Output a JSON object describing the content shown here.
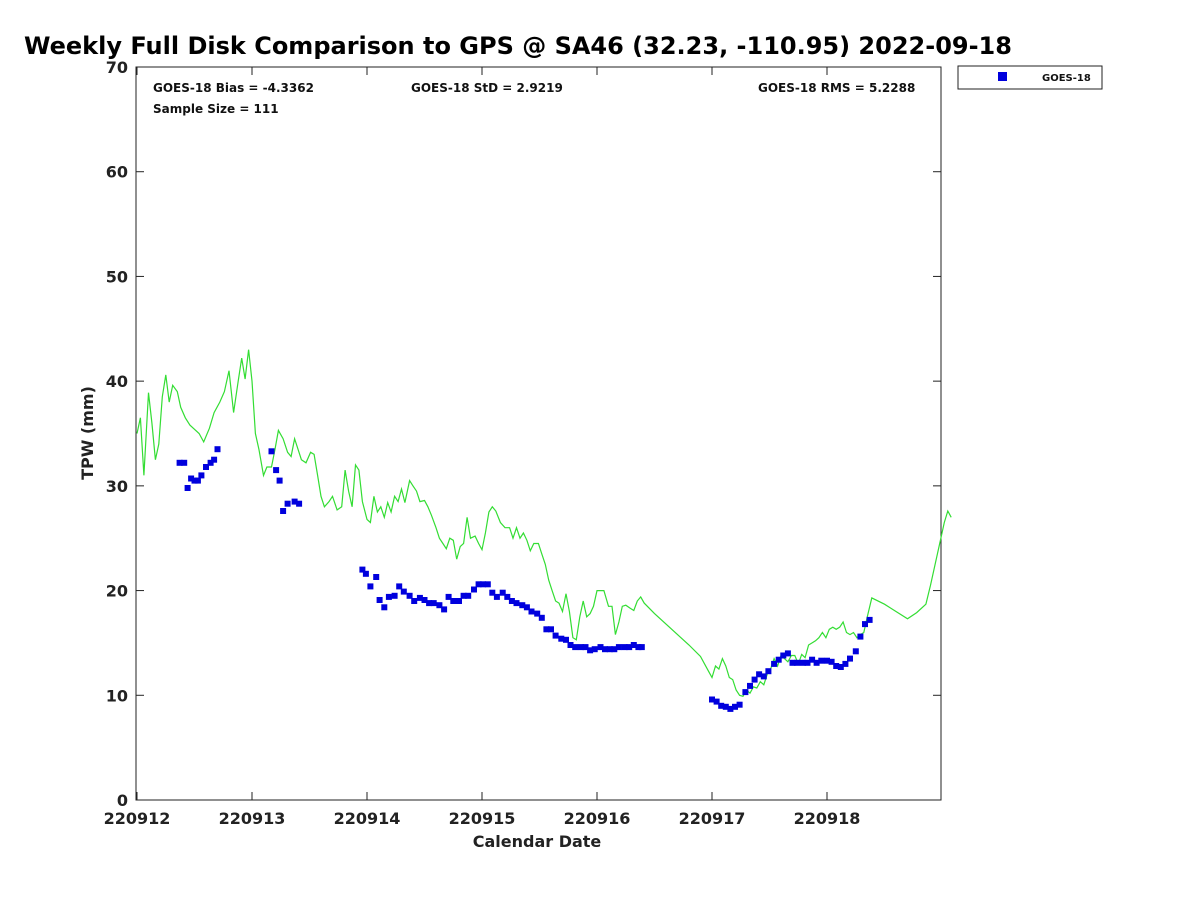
{
  "chart_data": {
    "type": "scatter",
    "title": "Weekly Full Disk Comparison to GPS @ SA46 (32.23, -110.95) 2022-09-18",
    "xlabel": "Calendar Date",
    "ylabel": "TPW (mm)",
    "xlim": [
      0,
      7
    ],
    "ylim": [
      0,
      70
    ],
    "yticks": [
      0,
      10,
      20,
      30,
      40,
      50,
      60,
      70
    ],
    "xticks": [
      {
        "x": 0,
        "label": "220912"
      },
      {
        "x": 1,
        "label": "220913"
      },
      {
        "x": 2,
        "label": "220914"
      },
      {
        "x": 3,
        "label": "220915"
      },
      {
        "x": 4,
        "label": "220916"
      },
      {
        "x": 5,
        "label": "220917"
      },
      {
        "x": 6,
        "label": "220918"
      }
    ],
    "stats": {
      "bias": "GOES-18 Bias = -4.3362",
      "std": "GOES-18 StD = 2.9219",
      "rms": "GOES-18 RMS = 5.2288",
      "sample": "Sample Size = 111"
    },
    "legend": {
      "position": "top-right",
      "label": "GOES-18"
    },
    "colors": {
      "goes": "#0000dd",
      "gps": "#33dd33"
    },
    "series": [
      {
        "name": "GOES-18",
        "kind": "markers",
        "points": [
          [
            0.37,
            32.2
          ],
          [
            0.41,
            32.2
          ],
          [
            0.44,
            29.8
          ],
          [
            0.47,
            30.7
          ],
          [
            0.5,
            30.5
          ],
          [
            0.53,
            30.5
          ],
          [
            0.56,
            31.0
          ],
          [
            0.6,
            31.8
          ],
          [
            0.64,
            32.2
          ],
          [
            0.67,
            32.5
          ],
          [
            0.7,
            33.5
          ],
          [
            1.17,
            33.3
          ],
          [
            1.21,
            31.5
          ],
          [
            1.24,
            30.5
          ],
          [
            1.27,
            27.6
          ],
          [
            1.31,
            28.3
          ],
          [
            1.37,
            28.5
          ],
          [
            1.41,
            28.3
          ],
          [
            1.96,
            22.0
          ],
          [
            1.99,
            21.6
          ],
          [
            2.03,
            20.4
          ],
          [
            2.08,
            21.3
          ],
          [
            2.11,
            19.1
          ],
          [
            2.15,
            18.4
          ],
          [
            2.19,
            19.4
          ],
          [
            2.24,
            19.5
          ],
          [
            2.28,
            20.4
          ],
          [
            2.32,
            19.9
          ],
          [
            2.37,
            19.5
          ],
          [
            2.41,
            19.0
          ],
          [
            2.46,
            19.3
          ],
          [
            2.5,
            19.1
          ],
          [
            2.54,
            18.8
          ],
          [
            2.58,
            18.8
          ],
          [
            2.63,
            18.6
          ],
          [
            2.67,
            18.2
          ],
          [
            2.71,
            19.4
          ],
          [
            2.75,
            19.0
          ],
          [
            2.8,
            19.0
          ],
          [
            2.84,
            19.5
          ],
          [
            2.88,
            19.5
          ],
          [
            2.93,
            20.1
          ],
          [
            2.97,
            20.6
          ],
          [
            3.01,
            20.6
          ],
          [
            3.05,
            20.6
          ],
          [
            3.09,
            19.8
          ],
          [
            3.13,
            19.4
          ],
          [
            3.18,
            19.8
          ],
          [
            3.22,
            19.4
          ],
          [
            3.26,
            19.0
          ],
          [
            3.3,
            18.8
          ],
          [
            3.35,
            18.6
          ],
          [
            3.39,
            18.4
          ],
          [
            3.43,
            18.0
          ],
          [
            3.48,
            17.8
          ],
          [
            3.52,
            17.4
          ],
          [
            3.56,
            16.3
          ],
          [
            3.6,
            16.3
          ],
          [
            3.64,
            15.7
          ],
          [
            3.69,
            15.4
          ],
          [
            3.73,
            15.3
          ],
          [
            3.77,
            14.8
          ],
          [
            3.81,
            14.6
          ],
          [
            3.86,
            14.6
          ],
          [
            3.9,
            14.6
          ],
          [
            3.94,
            14.3
          ],
          [
            3.98,
            14.4
          ],
          [
            4.03,
            14.6
          ],
          [
            4.07,
            14.4
          ],
          [
            4.11,
            14.4
          ],
          [
            4.15,
            14.4
          ],
          [
            4.19,
            14.6
          ],
          [
            4.24,
            14.6
          ],
          [
            4.28,
            14.6
          ],
          [
            4.32,
            14.8
          ],
          [
            4.36,
            14.6
          ],
          [
            4.39,
            14.6
          ],
          [
            5.0,
            9.6
          ],
          [
            5.04,
            9.4
          ],
          [
            5.08,
            9.0
          ],
          [
            5.12,
            8.9
          ],
          [
            5.16,
            8.7
          ],
          [
            5.2,
            8.9
          ],
          [
            5.24,
            9.1
          ],
          [
            5.29,
            10.3
          ],
          [
            5.33,
            10.9
          ],
          [
            5.37,
            11.5
          ],
          [
            5.41,
            12.0
          ],
          [
            5.45,
            11.8
          ],
          [
            5.49,
            12.3
          ],
          [
            5.54,
            13.0
          ],
          [
            5.58,
            13.4
          ],
          [
            5.62,
            13.8
          ],
          [
            5.66,
            14.0
          ],
          [
            5.7,
            13.1
          ],
          [
            5.74,
            13.1
          ],
          [
            5.79,
            13.1
          ],
          [
            5.83,
            13.1
          ],
          [
            5.87,
            13.4
          ],
          [
            5.91,
            13.1
          ],
          [
            5.95,
            13.3
          ],
          [
            6.0,
            13.3
          ],
          [
            6.04,
            13.2
          ],
          [
            6.08,
            12.8
          ],
          [
            6.12,
            12.7
          ],
          [
            6.16,
            13.0
          ],
          [
            6.2,
            13.5
          ],
          [
            6.25,
            14.2
          ],
          [
            6.29,
            15.6
          ],
          [
            6.33,
            16.8
          ],
          [
            6.37,
            17.2
          ]
        ]
      },
      {
        "name": "GPS",
        "kind": "line",
        "points": [
          [
            0.0,
            35.0
          ],
          [
            0.03,
            36.5
          ],
          [
            0.06,
            31.0
          ],
          [
            0.1,
            38.9
          ],
          [
            0.13,
            36.0
          ],
          [
            0.16,
            32.5
          ],
          [
            0.19,
            34.0
          ],
          [
            0.22,
            38.5
          ],
          [
            0.25,
            40.6
          ],
          [
            0.28,
            38.0
          ],
          [
            0.31,
            39.6
          ],
          [
            0.35,
            39.0
          ],
          [
            0.38,
            37.5
          ],
          [
            0.42,
            36.5
          ],
          [
            0.46,
            35.8
          ],
          [
            0.5,
            35.4
          ],
          [
            0.54,
            35.0
          ],
          [
            0.58,
            34.2
          ],
          [
            0.63,
            35.5
          ],
          [
            0.67,
            37.0
          ],
          [
            0.72,
            38.0
          ],
          [
            0.76,
            39.0
          ],
          [
            0.8,
            41.0
          ],
          [
            0.84,
            37.0
          ],
          [
            0.88,
            40.0
          ],
          [
            0.91,
            42.2
          ],
          [
            0.94,
            40.2
          ],
          [
            0.97,
            43.0
          ],
          [
            1.0,
            40.0
          ],
          [
            1.03,
            35.0
          ],
          [
            1.06,
            33.5
          ],
          [
            1.1,
            31.0
          ],
          [
            1.13,
            31.8
          ],
          [
            1.17,
            31.8
          ],
          [
            1.2,
            33.5
          ],
          [
            1.23,
            35.3
          ],
          [
            1.27,
            34.5
          ],
          [
            1.31,
            33.2
          ],
          [
            1.34,
            32.8
          ],
          [
            1.37,
            34.5
          ],
          [
            1.4,
            33.5
          ],
          [
            1.43,
            32.5
          ],
          [
            1.47,
            32.2
          ],
          [
            1.51,
            33.2
          ],
          [
            1.54,
            33.0
          ],
          [
            1.57,
            31.0
          ],
          [
            1.6,
            29.0
          ],
          [
            1.63,
            28.0
          ],
          [
            1.67,
            28.5
          ],
          [
            1.7,
            29.0
          ],
          [
            1.74,
            27.7
          ],
          [
            1.78,
            28.0
          ],
          [
            1.81,
            31.5
          ],
          [
            1.84,
            29.5
          ],
          [
            1.87,
            28.0
          ],
          [
            1.9,
            32.0
          ],
          [
            1.93,
            31.5
          ],
          [
            1.96,
            28.5
          ],
          [
            2.0,
            26.8
          ],
          [
            2.03,
            26.5
          ],
          [
            2.06,
            29.0
          ],
          [
            2.09,
            27.5
          ],
          [
            2.12,
            28.0
          ],
          [
            2.15,
            27.0
          ],
          [
            2.18,
            28.4
          ],
          [
            2.21,
            27.5
          ],
          [
            2.24,
            29.0
          ],
          [
            2.27,
            28.5
          ],
          [
            2.3,
            29.7
          ],
          [
            2.33,
            28.4
          ],
          [
            2.37,
            30.5
          ],
          [
            2.4,
            30.0
          ],
          [
            2.43,
            29.5
          ],
          [
            2.46,
            28.5
          ],
          [
            2.5,
            28.6
          ],
          [
            2.53,
            28.0
          ],
          [
            2.56,
            27.2
          ],
          [
            2.6,
            26.0
          ],
          [
            2.63,
            25.0
          ],
          [
            2.66,
            24.5
          ],
          [
            2.69,
            24.0
          ],
          [
            2.72,
            25.0
          ],
          [
            2.75,
            24.8
          ],
          [
            2.78,
            23.0
          ],
          [
            2.81,
            24.2
          ],
          [
            2.84,
            24.5
          ],
          [
            2.87,
            27.0
          ],
          [
            2.9,
            25.0
          ],
          [
            2.94,
            25.2
          ],
          [
            2.97,
            24.5
          ],
          [
            3.0,
            23.9
          ],
          [
            3.03,
            25.5
          ],
          [
            3.06,
            27.5
          ],
          [
            3.09,
            28.0
          ],
          [
            3.12,
            27.6
          ],
          [
            3.16,
            26.5
          ],
          [
            3.2,
            26.0
          ],
          [
            3.24,
            26.0
          ],
          [
            3.27,
            25.0
          ],
          [
            3.3,
            26.0
          ],
          [
            3.33,
            25.0
          ],
          [
            3.36,
            25.5
          ],
          [
            3.39,
            24.8
          ],
          [
            3.42,
            23.8
          ],
          [
            3.45,
            24.5
          ],
          [
            3.49,
            24.5
          ],
          [
            3.52,
            23.5
          ],
          [
            3.55,
            22.5
          ],
          [
            3.58,
            21.0
          ],
          [
            3.61,
            20.0
          ],
          [
            3.64,
            19.0
          ],
          [
            3.67,
            18.8
          ],
          [
            3.7,
            18.0
          ],
          [
            3.73,
            19.7
          ],
          [
            3.76,
            18.0
          ],
          [
            3.79,
            15.5
          ],
          [
            3.82,
            15.3
          ],
          [
            3.85,
            17.5
          ],
          [
            3.88,
            19.0
          ],
          [
            3.91,
            17.5
          ],
          [
            3.94,
            17.8
          ],
          [
            3.97,
            18.5
          ],
          [
            4.0,
            20.0
          ],
          [
            4.03,
            20.0
          ],
          [
            4.06,
            20.0
          ],
          [
            4.1,
            18.5
          ],
          [
            4.13,
            18.5
          ],
          [
            4.16,
            15.8
          ],
          [
            4.19,
            17.0
          ],
          [
            4.22,
            18.5
          ],
          [
            4.25,
            18.6
          ],
          [
            4.29,
            18.3
          ],
          [
            4.32,
            18.1
          ],
          [
            4.35,
            19.0
          ],
          [
            4.38,
            19.4
          ],
          [
            4.41,
            18.8
          ],
          [
            4.5,
            17.8
          ],
          [
            4.6,
            16.8
          ],
          [
            4.7,
            15.8
          ],
          [
            4.8,
            14.8
          ],
          [
            4.9,
            13.7
          ],
          [
            4.97,
            12.3
          ],
          [
            5.0,
            11.7
          ],
          [
            5.03,
            12.8
          ],
          [
            5.06,
            12.5
          ],
          [
            5.09,
            13.5
          ],
          [
            5.12,
            12.8
          ],
          [
            5.15,
            11.7
          ],
          [
            5.18,
            11.5
          ],
          [
            5.21,
            10.5
          ],
          [
            5.24,
            10.0
          ],
          [
            5.27,
            9.9
          ],
          [
            5.3,
            10.5
          ],
          [
            5.33,
            10.2
          ],
          [
            5.36,
            10.8
          ],
          [
            5.39,
            10.7
          ],
          [
            5.42,
            11.3
          ],
          [
            5.45,
            11.0
          ],
          [
            5.48,
            12.0
          ],
          [
            5.51,
            12.5
          ],
          [
            5.54,
            13.5
          ],
          [
            5.57,
            12.8
          ],
          [
            5.6,
            13.8
          ],
          [
            5.63,
            13.5
          ],
          [
            5.66,
            13.2
          ],
          [
            5.69,
            13.8
          ],
          [
            5.72,
            13.8
          ],
          [
            5.75,
            13.0
          ],
          [
            5.78,
            13.9
          ],
          [
            5.81,
            13.6
          ],
          [
            5.84,
            14.8
          ],
          [
            5.87,
            15.0
          ],
          [
            5.9,
            15.2
          ],
          [
            5.93,
            15.5
          ],
          [
            5.96,
            16.0
          ],
          [
            5.99,
            15.5
          ],
          [
            6.02,
            16.3
          ],
          [
            6.05,
            16.5
          ],
          [
            6.08,
            16.3
          ],
          [
            6.11,
            16.5
          ],
          [
            6.14,
            17.0
          ],
          [
            6.17,
            16.0
          ],
          [
            6.2,
            15.8
          ],
          [
            6.23,
            16.0
          ],
          [
            6.26,
            15.5
          ],
          [
            6.29,
            15.8
          ],
          [
            6.32,
            16.0
          ],
          [
            6.35,
            17.5
          ],
          [
            6.39,
            19.3
          ],
          [
            6.5,
            18.7
          ],
          [
            6.6,
            18.0
          ],
          [
            6.7,
            17.3
          ],
          [
            6.78,
            17.9
          ],
          [
            6.86,
            18.7
          ],
          [
            6.9,
            20.5
          ],
          [
            6.94,
            22.5
          ],
          [
            6.98,
            24.5
          ],
          [
            7.02,
            26.5
          ],
          [
            7.05,
            27.6
          ],
          [
            7.08,
            27.0
          ]
        ]
      }
    ]
  }
}
